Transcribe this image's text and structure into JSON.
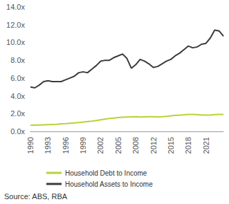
{
  "chart_data": {
    "type": "line",
    "categories": [
      "1990",
      null,
      null,
      null,
      "1993",
      null,
      null,
      null,
      "1996",
      null,
      null,
      null,
      "1999",
      null,
      null,
      null,
      "2002",
      null,
      null,
      null,
      "2005",
      null,
      null,
      null,
      "2008",
      null,
      null,
      null,
      "2012",
      null,
      null,
      null,
      "2015",
      null,
      null,
      null,
      "2018",
      null,
      null,
      null,
      "2021",
      null,
      null,
      null,
      null
    ],
    "series": [
      {
        "name": "Household Debt to Income",
        "color": "#b5d334",
        "values": [
          0.7,
          0.7,
          0.72,
          0.74,
          0.76,
          0.78,
          0.8,
          0.85,
          0.88,
          0.92,
          0.96,
          1.0,
          1.05,
          1.1,
          1.15,
          1.22,
          1.3,
          1.38,
          1.45,
          1.5,
          1.55,
          1.6,
          1.62,
          1.64,
          1.65,
          1.62,
          1.64,
          1.66,
          1.65,
          1.64,
          1.66,
          1.7,
          1.75,
          1.8,
          1.83,
          1.86,
          1.9,
          1.9,
          1.88,
          1.85,
          1.82,
          1.84,
          1.88,
          1.9,
          1.9
        ]
      },
      {
        "name": "Household Assets to Income",
        "color": "#3a3a3a",
        "values": [
          5.0,
          4.9,
          5.2,
          5.6,
          5.7,
          5.6,
          5.6,
          5.6,
          5.8,
          6.0,
          6.2,
          6.6,
          6.7,
          6.6,
          7.0,
          7.4,
          7.9,
          8.0,
          8.0,
          8.3,
          8.5,
          8.7,
          8.2,
          7.1,
          7.5,
          8.1,
          7.9,
          7.6,
          7.2,
          7.3,
          7.6,
          7.9,
          8.1,
          8.5,
          8.8,
          9.2,
          9.6,
          9.4,
          9.5,
          9.8,
          9.9,
          10.5,
          11.4,
          11.3,
          10.7
        ]
      }
    ],
    "ylim": [
      0,
      14
    ],
    "yticks": [
      {
        "value": 0,
        "label": "0.0x"
      },
      {
        "value": 2,
        "label": "2.0x"
      },
      {
        "value": 4,
        "label": "4.0x"
      },
      {
        "value": 6,
        "label": "6.0x"
      },
      {
        "value": 8,
        "label": "8.0x"
      },
      {
        "value": 10,
        "label": "10.0x"
      },
      {
        "value": 12,
        "label": "12.0x"
      },
      {
        "value": 14,
        "label": "14.0x"
      }
    ],
    "grid": false,
    "legend": "bottom",
    "annotations": [
      "Source: ABS, RBA"
    ]
  }
}
